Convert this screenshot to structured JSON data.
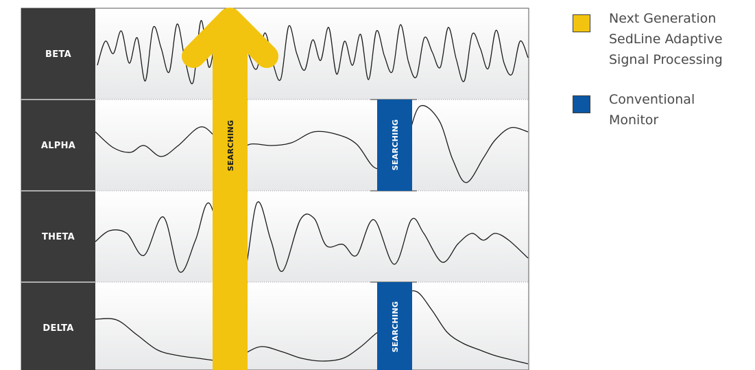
{
  "bands": [
    {
      "label": "BETA"
    },
    {
      "label": "ALPHA"
    },
    {
      "label": "THETA"
    },
    {
      "label": "DELTA"
    }
  ],
  "search_labels": {
    "adaptive": "SEARCHING",
    "conventional_alpha": "SEARCHING",
    "conventional_delta": "SEARCHING"
  },
  "legend": [
    {
      "lines": [
        "Next Generation",
        "SedLine Adaptive",
        "Signal Processing"
      ],
      "color": "#f2c40f"
    },
    {
      "lines": [
        "Conventional",
        "Monitor"
      ],
      "color": "#0b57a4"
    }
  ],
  "colors": {
    "label_column": "#3a3a3a",
    "adaptive_arrow": "#f2c40f",
    "conventional_bar": "#0b57a4",
    "wave": "#1a1a1a",
    "band_divider": "#555555"
  },
  "icons": {
    "adaptive_marker": "up-arrow-icon",
    "conventional_marker": "vertical-bar"
  }
}
